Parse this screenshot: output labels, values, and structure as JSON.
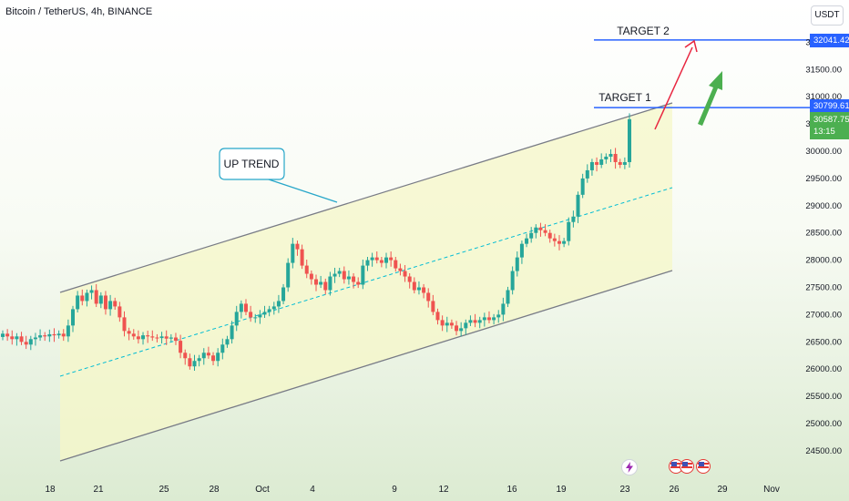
{
  "header": {
    "symbol_title": "Bitcoin / TetherUS, 4h, BINANCE",
    "currency": "USDT"
  },
  "price_badges": {
    "target2": "32041.42",
    "target1": "30799.61",
    "last_price": "30587.75",
    "countdown": "13:15"
  },
  "annotations": {
    "target1_label": "TARGET 1",
    "target2_label": "TARGET 2",
    "trend_label": "UP TREND"
  },
  "colors": {
    "up_candle": "#26a69a",
    "down_candle": "#ef5350",
    "channel_fill": "#f5f7c8",
    "target_line": "#2962ff",
    "midline": "#00bcd4",
    "arrow_red": "#e8253f",
    "arrow_green": "#4caf50"
  },
  "icons": {
    "event_bolt": "lightning-icon",
    "event_flag": "us-flag-icon"
  },
  "chart_data": {
    "type": "candlestick",
    "timeframe": "4h",
    "ylim": [
      24000,
      32500
    ],
    "y_ticks": [
      24500,
      25000,
      25500,
      26000,
      26500,
      27000,
      27500,
      28000,
      28500,
      29000,
      29500,
      30000,
      30500,
      31000,
      31500,
      32000
    ],
    "y_tick_labels": [
      "24500.00",
      "25000.00",
      "25500.00",
      "26000.00",
      "26500.00",
      "27000.00",
      "27500.00",
      "28000.00",
      "28500.00",
      "29000.00",
      "29500.00",
      "30000.00",
      "30500.00",
      "31000.00",
      "31500.00",
      "32000.00"
    ],
    "x_tick_labels": [
      "18",
      "21",
      "25",
      "28",
      "Oct",
      "4",
      "9",
      "12",
      "16",
      "19",
      "23",
      "26",
      "29",
      "Nov"
    ],
    "key_levels": [
      {
        "name": "TARGET 2",
        "value": 32041.42
      },
      {
        "name": "TARGET 1",
        "value": 30799.61
      }
    ],
    "last_price": 30587.75,
    "close_series": [
      26650,
      26600,
      26550,
      26600,
      26500,
      26450,
      26550,
      26580,
      26620,
      26600,
      26640,
      26620,
      26650,
      26600,
      26800,
      27100,
      27350,
      27250,
      27400,
      27450,
      27200,
      27350,
      27100,
      27250,
      27150,
      26950,
      26700,
      26650,
      26600,
      26550,
      26620,
      26600,
      26580,
      26570,
      26600,
      26560,
      26580,
      26520,
      26300,
      26200,
      26050,
      26150,
      26200,
      26300,
      26250,
      26150,
      26300,
      26450,
      26550,
      26800,
      27050,
      27200,
      27050,
      26950,
      26950,
      27000,
      27050,
      27100,
      27150,
      27250,
      27500,
      27950,
      28300,
      28200,
      27900,
      27750,
      27650,
      27550,
      27600,
      27450,
      27700,
      27750,
      27800,
      27650,
      27700,
      27600,
      27550,
      27900,
      28000,
      28050,
      28000,
      27950,
      28050,
      28000,
      27850,
      27800,
      27700,
      27600,
      27450,
      27500,
      27400,
      27250,
      27050,
      26900,
      26800,
      26850,
      26800,
      26700,
      26750,
      26850,
      26900,
      26850,
      26900,
      26950,
      26900,
      26950,
      27000,
      27200,
      27450,
      27800,
      28050,
      28300,
      28400,
      28500,
      28600,
      28550,
      28500,
      28400,
      28350,
      28300,
      28350,
      28700,
      28800,
      29200,
      29500,
      29650,
      29800,
      29750,
      29850,
      29900,
      29950,
      29800,
      29750,
      29800,
      30587
    ]
  }
}
